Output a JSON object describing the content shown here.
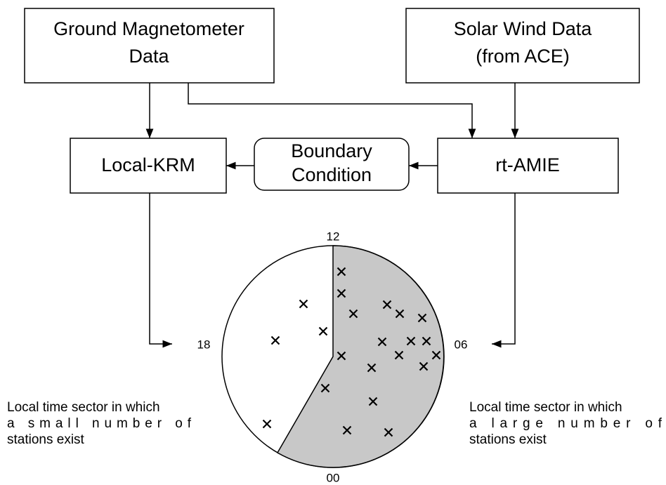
{
  "nodes": [
    {
      "lines": [
        "Ground Magnetometer",
        "Data"
      ]
    },
    {
      "lines": [
        "Solar Wind Data",
        "(from ACE)"
      ]
    },
    {
      "lines": [
        "Local-KRM"
      ]
    },
    {
      "lines": [
        "Boundary",
        "Condition"
      ]
    },
    {
      "lines": [
        "rt-AMIE"
      ]
    }
  ],
  "clock": {
    "top": "12",
    "right": "06",
    "left": "18",
    "bottom": "00"
  },
  "captions": {
    "left": [
      "Local time sector in which",
      "a small number of",
      "stations exist"
    ],
    "right": [
      "Local time sector in which",
      "a large number of",
      "stations exist"
    ]
  }
}
